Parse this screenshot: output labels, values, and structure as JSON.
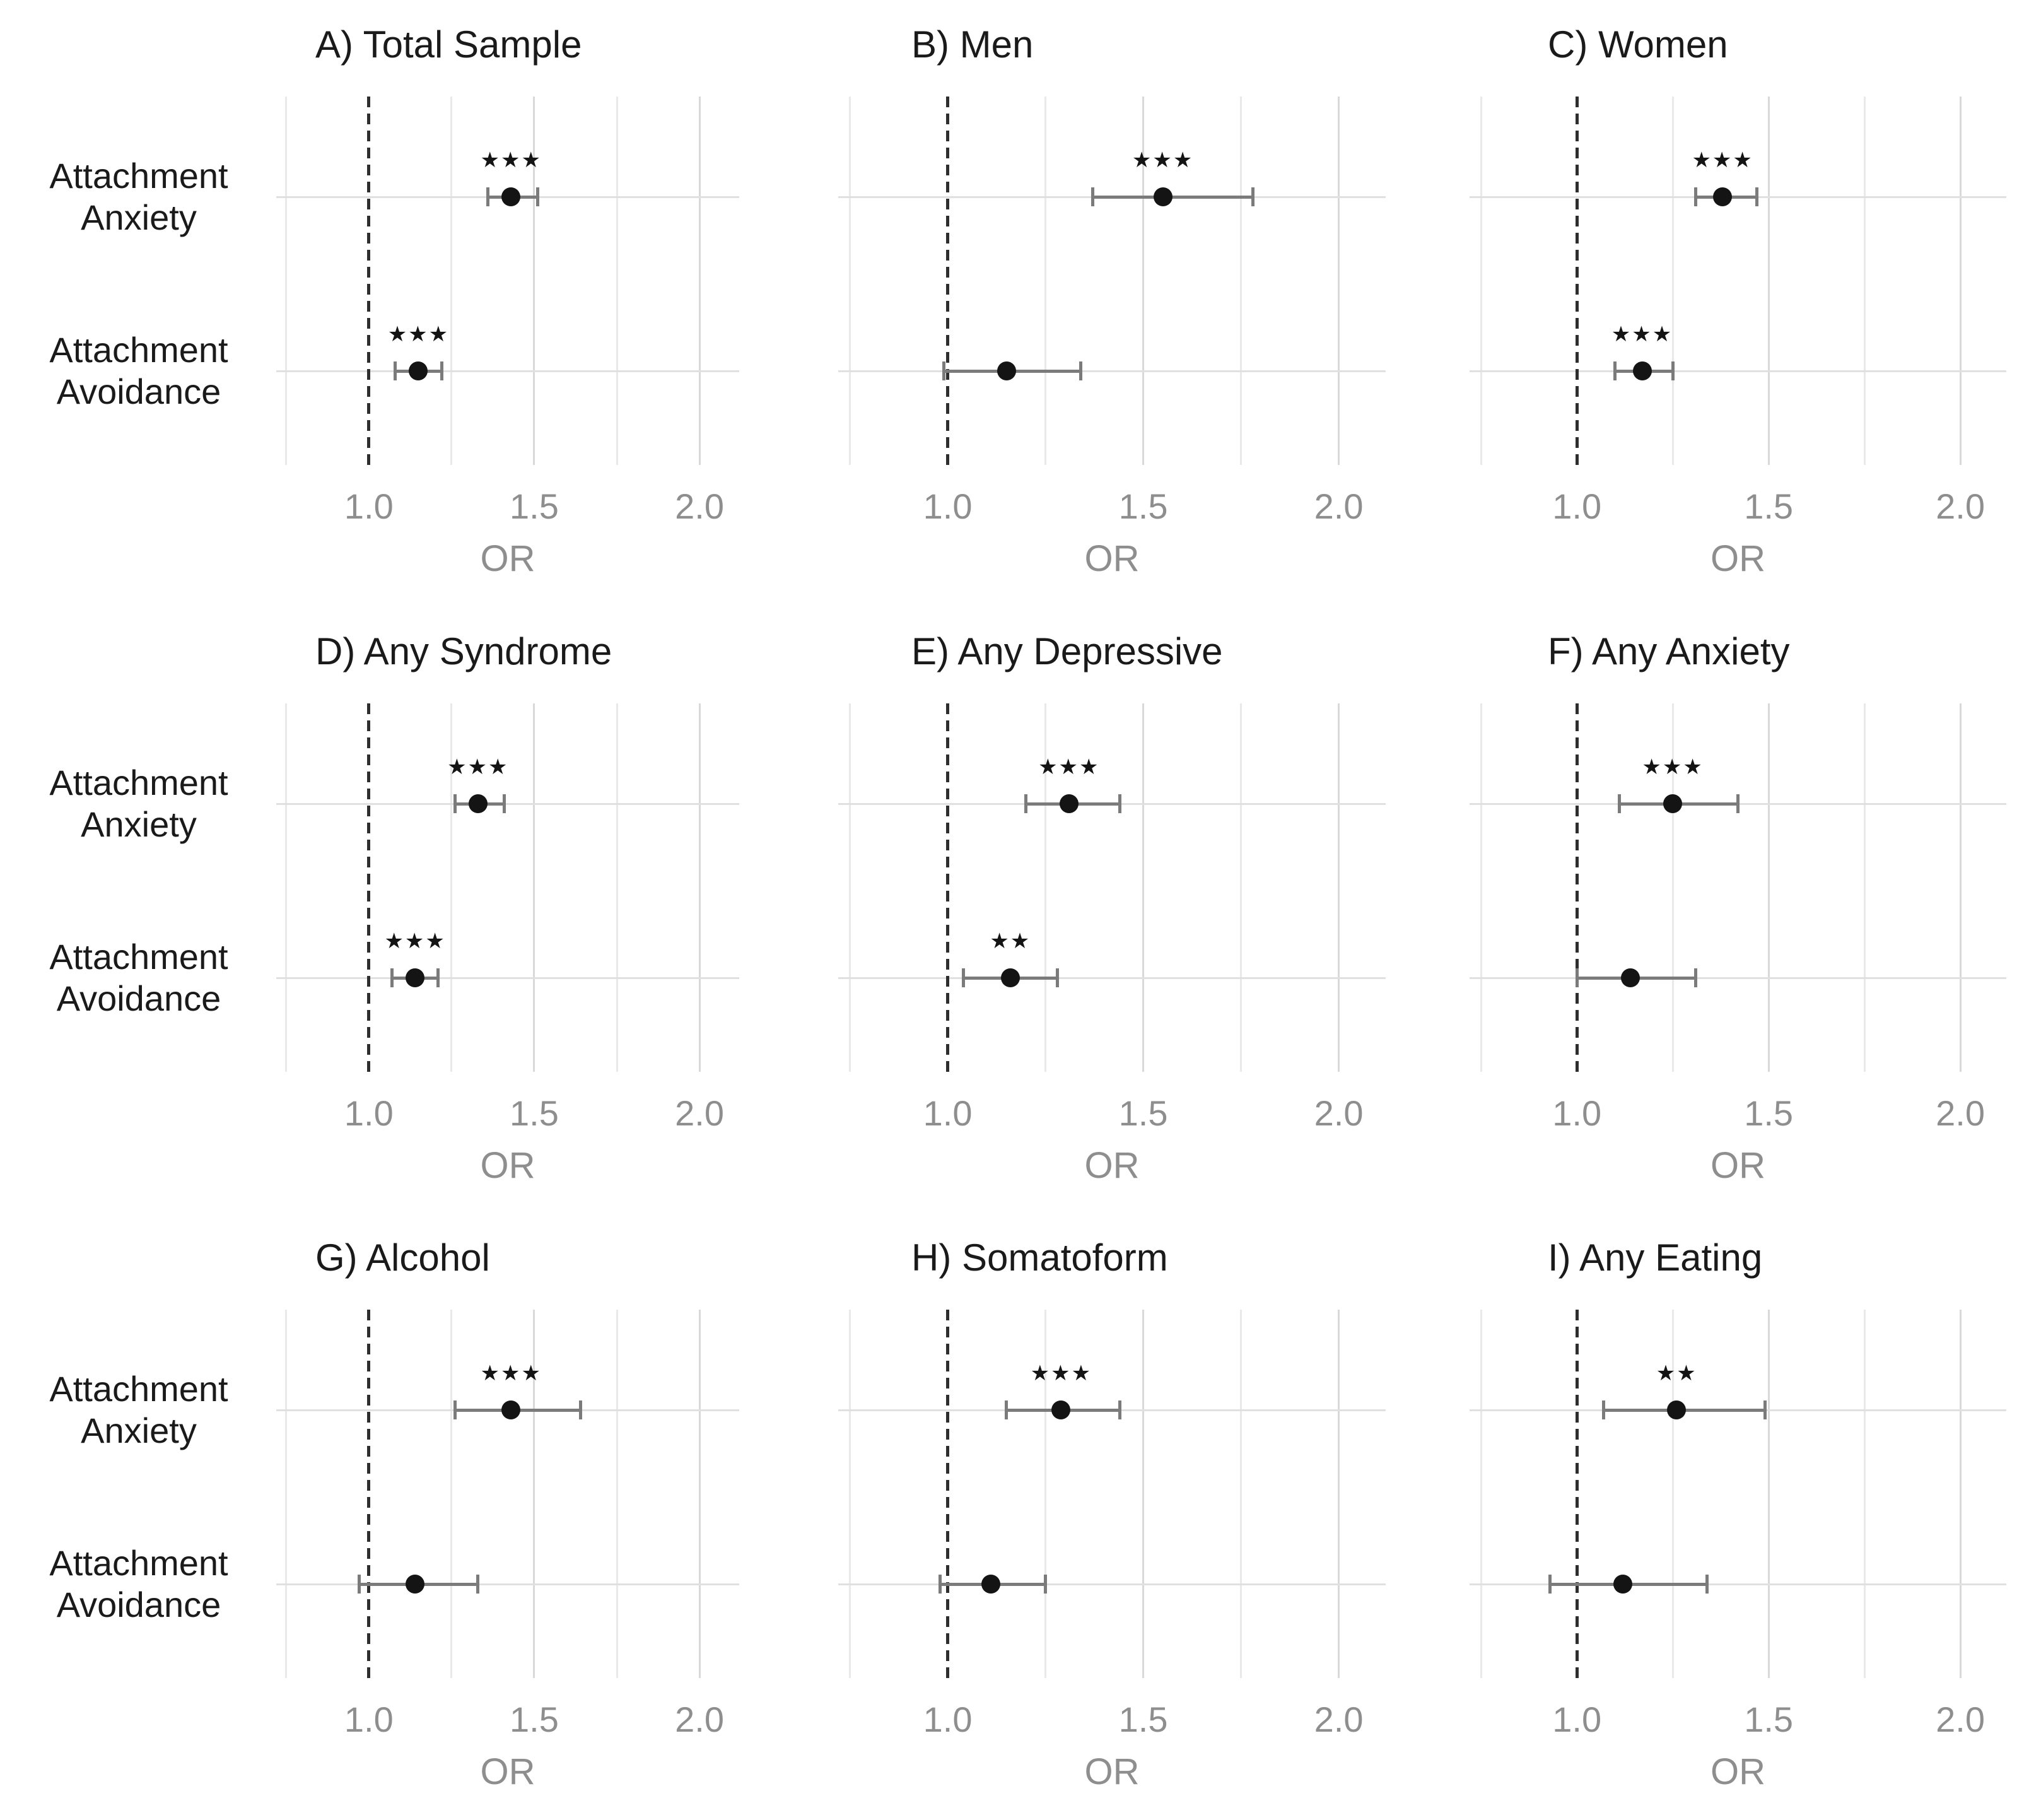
{
  "figure": {
    "x_axis": {
      "label": "OR",
      "ticks": [
        "1.0",
        "1.5",
        "2.0"
      ],
      "tick_values": [
        1.0,
        1.5,
        2.0
      ],
      "minor_gridline_values": [
        0.75,
        1.25,
        1.75
      ],
      "range": [
        0.72,
        2.12
      ],
      "reference_line": 1.0
    },
    "y_axis": {
      "categories": [
        {
          "lines": [
            "Attachment",
            "Anxiety"
          ]
        },
        {
          "lines": [
            "Attachment",
            "Avoidance"
          ]
        }
      ]
    },
    "colors": {
      "point": "#141414",
      "error_bar": "#7b7b7b",
      "grid_major": "#d9d9d9",
      "grid_minor": "#e9e9e9",
      "grid_horizontal": "#e0e0e0",
      "reference_line": "#2e2e2e",
      "tick_text": "#8e8e8e",
      "title_text": "#1a1a1a"
    }
  },
  "chart_data": {
    "type": "scatter",
    "subtype": "forest-dot-whisker",
    "title": "",
    "xlabel": "OR",
    "ylabel": "",
    "x_ticks": [
      1.0,
      1.5,
      2.0
    ],
    "x_range": [
      0.72,
      2.12
    ],
    "reference_line": 1.0,
    "grid": "on",
    "legend": "none",
    "predictors": [
      "Attachment Anxiety",
      "Attachment Avoidance"
    ],
    "panels": [
      {
        "label": "A",
        "title": "A) Total Sample",
        "rows": [
          {
            "predictor": "Attachment Anxiety",
            "or": 1.43,
            "ci_low": 1.36,
            "ci_high": 1.51,
            "sig": "***"
          },
          {
            "predictor": "Attachment Avoidance",
            "or": 1.15,
            "ci_low": 1.08,
            "ci_high": 1.22,
            "sig": "***"
          }
        ]
      },
      {
        "label": "B",
        "title": "B) Men",
        "rows": [
          {
            "predictor": "Attachment Anxiety",
            "or": 1.55,
            "ci_low": 1.37,
            "ci_high": 1.78,
            "sig": "***"
          },
          {
            "predictor": "Attachment Avoidance",
            "or": 1.15,
            "ci_low": 0.99,
            "ci_high": 1.34,
            "sig": ""
          }
        ]
      },
      {
        "label": "C",
        "title": "C) Women",
        "rows": [
          {
            "predictor": "Attachment Anxiety",
            "or": 1.38,
            "ci_low": 1.31,
            "ci_high": 1.47,
            "sig": "***"
          },
          {
            "predictor": "Attachment Avoidance",
            "or": 1.17,
            "ci_low": 1.1,
            "ci_high": 1.25,
            "sig": "***"
          }
        ]
      },
      {
        "label": "D",
        "title": "D) Any Syndrome",
        "rows": [
          {
            "predictor": "Attachment Anxiety",
            "or": 1.33,
            "ci_low": 1.26,
            "ci_high": 1.41,
            "sig": "***"
          },
          {
            "predictor": "Attachment Avoidance",
            "or": 1.14,
            "ci_low": 1.07,
            "ci_high": 1.21,
            "sig": "***"
          }
        ]
      },
      {
        "label": "E",
        "title": "E) Any Depressive",
        "rows": [
          {
            "predictor": "Attachment Anxiety",
            "or": 1.31,
            "ci_low": 1.2,
            "ci_high": 1.44,
            "sig": "***"
          },
          {
            "predictor": "Attachment Avoidance",
            "or": 1.16,
            "ci_low": 1.04,
            "ci_high": 1.28,
            "sig": "**"
          }
        ]
      },
      {
        "label": "F",
        "title": "F) Any Anxiety",
        "rows": [
          {
            "predictor": "Attachment Anxiety",
            "or": 1.25,
            "ci_low": 1.11,
            "ci_high": 1.42,
            "sig": "***"
          },
          {
            "predictor": "Attachment Avoidance",
            "or": 1.14,
            "ci_low": 1.0,
            "ci_high": 1.31,
            "sig": ""
          }
        ]
      },
      {
        "label": "G",
        "title": "G) Alcohol",
        "rows": [
          {
            "predictor": "Attachment Anxiety",
            "or": 1.43,
            "ci_low": 1.26,
            "ci_high": 1.64,
            "sig": "***"
          },
          {
            "predictor": "Attachment Avoidance",
            "or": 1.14,
            "ci_low": 0.97,
            "ci_high": 1.33,
            "sig": ""
          }
        ]
      },
      {
        "label": "H",
        "title": "H) Somatoform",
        "rows": [
          {
            "predictor": "Attachment Anxiety",
            "or": 1.29,
            "ci_low": 1.15,
            "ci_high": 1.44,
            "sig": "***"
          },
          {
            "predictor": "Attachment Avoidance",
            "or": 1.11,
            "ci_low": 0.98,
            "ci_high": 1.25,
            "sig": ""
          }
        ]
      },
      {
        "label": "I",
        "title": "I) Any Eating",
        "rows": [
          {
            "predictor": "Attachment Anxiety",
            "or": 1.26,
            "ci_low": 1.07,
            "ci_high": 1.49,
            "sig": "**"
          },
          {
            "predictor": "Attachment Avoidance",
            "or": 1.12,
            "ci_low": 0.93,
            "ci_high": 1.34,
            "sig": ""
          }
        ]
      }
    ]
  }
}
